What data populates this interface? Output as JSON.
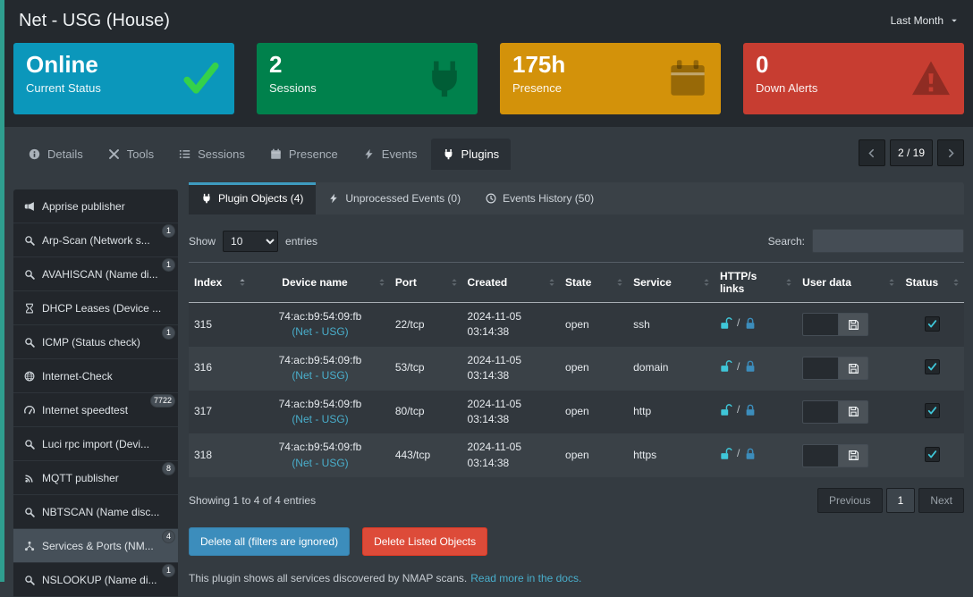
{
  "header": {
    "title": "Net - USG (House)",
    "period": "Last Month"
  },
  "cards": [
    {
      "value": "Online",
      "label": "Current Status",
      "icon": "check-icon",
      "bg": "#0b97bb",
      "icon_color": "#35d14a"
    },
    {
      "value": "2",
      "label": "Sessions",
      "icon": "plug-icon",
      "bg": "#00814c",
      "icon_color": "rgba(0,0,0,0.28)"
    },
    {
      "value": "175h",
      "label": "Presence",
      "icon": "calendar-icon",
      "bg": "#d3920a",
      "icon_color": "rgba(0,0,0,0.28)"
    },
    {
      "value": "0",
      "label": "Down Alerts",
      "icon": "warning-icon",
      "bg": "#c73d31",
      "icon_color": "rgba(0,0,0,0.28)"
    }
  ],
  "tabs": [
    {
      "label": "Details",
      "icon": "info-icon"
    },
    {
      "label": "Tools",
      "icon": "tools-icon"
    },
    {
      "label": "Sessions",
      "icon": "list-icon"
    },
    {
      "label": "Presence",
      "icon": "calendar-icon"
    },
    {
      "label": "Events",
      "icon": "bolt-icon"
    },
    {
      "label": "Plugins",
      "icon": "plug-icon",
      "active": true
    }
  ],
  "pager": {
    "label": "2 / 19"
  },
  "sidebar": [
    {
      "label": "Apprise publisher",
      "icon": "megaphone-icon"
    },
    {
      "label": "Arp-Scan (Network s...",
      "icon": "search-icon",
      "badge": "1"
    },
    {
      "label": "AVAHISCAN (Name di...",
      "icon": "search-icon",
      "badge": "1"
    },
    {
      "label": "DHCP Leases (Device ...",
      "icon": "hourglass-icon"
    },
    {
      "label": "ICMP (Status check)",
      "icon": "search-icon",
      "badge": "1"
    },
    {
      "label": "Internet-Check",
      "icon": "globe-icon"
    },
    {
      "label": "Internet speedtest",
      "icon": "gauge-icon",
      "badge": "7722"
    },
    {
      "label": "Luci rpc import (Devi...",
      "icon": "search-icon"
    },
    {
      "label": "MQTT publisher",
      "icon": "broadcast-icon",
      "badge": "8"
    },
    {
      "label": "NBTSCAN (Name disc...",
      "icon": "search-icon"
    },
    {
      "label": "Services & Ports (NM...",
      "icon": "network-icon",
      "badge": "4",
      "active": true
    },
    {
      "label": "NSLOOKUP (Name di...",
      "icon": "search-icon",
      "badge": "1"
    }
  ],
  "subtabs": [
    {
      "label": "Plugin Objects (4)",
      "icon": "plug-icon",
      "active": true
    },
    {
      "label": "Unprocessed Events (0)",
      "icon": "bolt-icon"
    },
    {
      "label": "Events History (50)",
      "icon": "clock-icon"
    }
  ],
  "controls": {
    "show_label": "Show",
    "entries_label": "entries",
    "page_size": "10",
    "search_label": "Search:"
  },
  "table": {
    "columns": [
      {
        "label": "Index",
        "sorted": true
      },
      {
        "label": "Device name"
      },
      {
        "label": "Port"
      },
      {
        "label": "Created"
      },
      {
        "label": "State"
      },
      {
        "label": "Service"
      },
      {
        "label": "HTTP/s links"
      },
      {
        "label": "User data"
      },
      {
        "label": "Status"
      }
    ],
    "rows": [
      {
        "index": "315",
        "device_name": "74:ac:b9:54:09:fb",
        "device_link": "(Net - USG)",
        "port": "22/tcp",
        "created_date": "2024-11-05",
        "created_time": "03:14:38",
        "state": "open",
        "service": "ssh",
        "user_data": "",
        "status_checked": true
      },
      {
        "index": "316",
        "device_name": "74:ac:b9:54:09:fb",
        "device_link": "(Net - USG)",
        "port": "53/tcp",
        "created_date": "2024-11-05",
        "created_time": "03:14:38",
        "state": "open",
        "service": "domain",
        "user_data": "",
        "status_checked": true
      },
      {
        "index": "317",
        "device_name": "74:ac:b9:54:09:fb",
        "device_link": "(Net - USG)",
        "port": "80/tcp",
        "created_date": "2024-11-05",
        "created_time": "03:14:38",
        "state": "open",
        "service": "http",
        "user_data": "",
        "status_checked": true
      },
      {
        "index": "318",
        "device_name": "74:ac:b9:54:09:fb",
        "device_link": "(Net - USG)",
        "port": "443/tcp",
        "created_date": "2024-11-05",
        "created_time": "03:14:38",
        "state": "open",
        "service": "https",
        "user_data": "",
        "status_checked": true
      }
    ]
  },
  "table_footer": {
    "showing": "Showing 1 to 4 of 4 entries",
    "previous": "Previous",
    "page": "1",
    "next": "Next"
  },
  "actions": [
    {
      "label": "Delete all (filters are ignored)",
      "bg": "#3c8dbc",
      "border": "#367fa9"
    },
    {
      "label": "Delete Listed Objects",
      "bg": "#dd4b39",
      "border": "#d73925"
    }
  ],
  "footnote": {
    "text": "This plugin shows all services discovered by NMAP scans.",
    "link": "Read more in the docs."
  },
  "colors": {
    "edge_accent": "#2f9e8f",
    "link": "#49aecb",
    "lock_http": "#3fc6d8",
    "lock_https": "#3c8dbc"
  }
}
